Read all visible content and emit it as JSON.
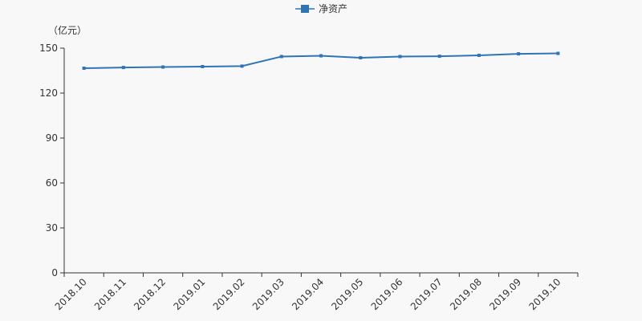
{
  "chart_data": {
    "type": "line",
    "legend_label": "净资产",
    "unit_label": "（亿元）",
    "categories": [
      "2018.10",
      "2018.11",
      "2018.12",
      "2019.01",
      "2019.02",
      "2019.03",
      "2019.04",
      "2019.05",
      "2019.06",
      "2019.07",
      "2019.08",
      "2019.09",
      "2019.10"
    ],
    "series": [
      {
        "name": "净资产",
        "color": "#2f74b5",
        "values": [
          136.6,
          137.1,
          137.4,
          137.7,
          138.0,
          144.4,
          144.9,
          143.6,
          144.4,
          144.6,
          145.2,
          146.2,
          146.5
        ]
      }
    ],
    "ylim": [
      0,
      150
    ],
    "yticks": [
      0,
      30,
      60,
      90,
      120,
      150
    ],
    "grid": false
  }
}
